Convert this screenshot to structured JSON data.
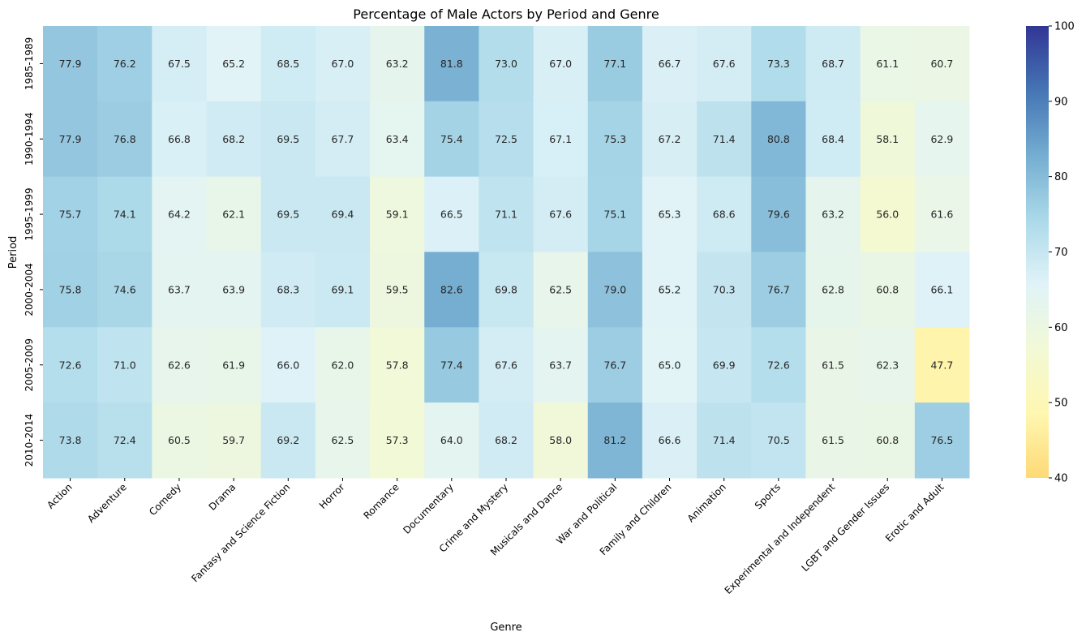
{
  "chart_data": {
    "type": "heatmap",
    "title": "Percentage of Male Actors by Period and Genre",
    "xlabel": "Genre",
    "ylabel": "Period",
    "x_categories": [
      "Action",
      "Adventure",
      "Comedy",
      "Drama",
      "Fantasy and Science Fiction",
      "Horror",
      "Romance",
      "Documentary",
      "Crime and Mystery",
      "Musicals and Dance",
      "War and Political",
      "Family and Children",
      "Animation",
      "Sports",
      "Experimental and Independent",
      "LGBT and Gender Issues",
      "Erotic and Adult"
    ],
    "y_categories": [
      "1985-1989",
      "1990-1994",
      "1995-1999",
      "2000-2004",
      "2005-2009",
      "2010-2014"
    ],
    "values": [
      [
        77.9,
        76.2,
        67.5,
        65.2,
        68.5,
        67.0,
        63.2,
        81.8,
        73.0,
        67.0,
        77.1,
        66.7,
        67.6,
        73.3,
        68.7,
        61.1,
        60.7
      ],
      [
        77.9,
        76.8,
        66.8,
        68.2,
        69.5,
        67.7,
        63.4,
        75.4,
        72.5,
        67.1,
        75.3,
        67.2,
        71.4,
        80.8,
        68.4,
        58.1,
        62.9
      ],
      [
        75.7,
        74.1,
        64.2,
        62.1,
        69.5,
        69.4,
        59.1,
        66.5,
        71.1,
        67.6,
        75.1,
        65.3,
        68.6,
        79.6,
        63.2,
        56.0,
        61.6
      ],
      [
        75.8,
        74.6,
        63.7,
        63.9,
        68.3,
        69.1,
        59.5,
        82.6,
        69.8,
        62.5,
        79.0,
        65.2,
        70.3,
        76.7,
        62.8,
        60.8,
        66.1
      ],
      [
        72.6,
        71.0,
        62.6,
        61.9,
        66.0,
        62.0,
        57.8,
        77.4,
        67.6,
        63.7,
        76.7,
        65.0,
        69.9,
        72.6,
        61.5,
        62.3,
        47.7
      ],
      [
        73.8,
        72.4,
        60.5,
        59.7,
        69.2,
        62.5,
        57.3,
        64.0,
        68.2,
        58.0,
        81.2,
        66.6,
        71.4,
        70.5,
        61.5,
        60.8,
        76.5
      ]
    ],
    "value_format": "0.1f",
    "colorbar": {
      "min": 40,
      "max": 100,
      "ticks": [
        40,
        50,
        60,
        70,
        80,
        90,
        100
      ]
    },
    "colormap": [
      "#fed976",
      "#fff7b1",
      "#f2f9d6",
      "#e0f3f8",
      "#abd9e9",
      "#74add1",
      "#4575b4",
      "#313695"
    ]
  }
}
